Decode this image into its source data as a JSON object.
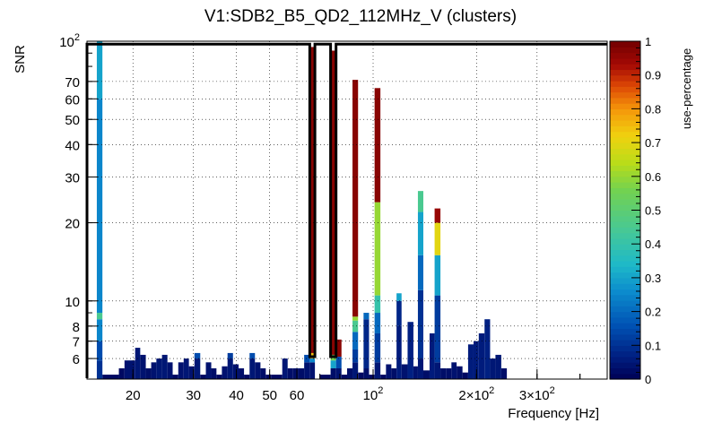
{
  "chart_data": {
    "type": "heatmap",
    "title": "V1:SDB2_B5_QD2_112MHz_V (clusters)",
    "xlabel": "Frequency [Hz]",
    "ylabel": "SNR",
    "zlabel": "use-percentage",
    "x_scale": "log",
    "y_scale": "log",
    "xlim": [
      14.7,
      480
    ],
    "ylim": [
      5.0,
      100
    ],
    "zlim": [
      0,
      1
    ],
    "x_ticks": [
      {
        "value": 20,
        "label": "20"
      },
      {
        "value": 30,
        "label": "30"
      },
      {
        "value": 40,
        "label": "40"
      },
      {
        "value": 50,
        "label": "50"
      },
      {
        "value": 60,
        "label": "60"
      },
      {
        "value": 100,
        "label": "10",
        "exp": "2"
      },
      {
        "value": 200,
        "label": "2×10",
        "exp": "2"
      },
      {
        "value": 300,
        "label": "3×10",
        "exp": "2"
      }
    ],
    "y_ticks": [
      {
        "value": 6,
        "label": "6"
      },
      {
        "value": 7,
        "label": "7"
      },
      {
        "value": 8,
        "label": "8"
      },
      {
        "value": 10,
        "label": "10"
      },
      {
        "value": 20,
        "label": "20"
      },
      {
        "value": 30,
        "label": "30"
      },
      {
        "value": 40,
        "label": "40"
      },
      {
        "value": 50,
        "label": "50"
      },
      {
        "value": 60,
        "label": "60"
      },
      {
        "value": 70,
        "label": "70"
      },
      {
        "value": 100,
        "label": "10",
        "exp": "2"
      }
    ],
    "z_ticks": [
      {
        "value": 0,
        "label": "0"
      },
      {
        "value": 0.1,
        "label": "0.1"
      },
      {
        "value": 0.2,
        "label": "0.2"
      },
      {
        "value": 0.3,
        "label": "0.3"
      },
      {
        "value": 0.4,
        "label": "0.4"
      },
      {
        "value": 0.5,
        "label": "0.5"
      },
      {
        "value": 0.6,
        "label": "0.6"
      },
      {
        "value": 0.7,
        "label": "0.7"
      },
      {
        "value": 0.8,
        "label": "0.8"
      },
      {
        "value": 0.9,
        "label": "0.9"
      },
      {
        "value": 1,
        "label": "1"
      }
    ],
    "columns": [
      {
        "x": [
          15.7,
          16.3
        ],
        "cells": [
          [
            5.0,
            5.9,
            0.1
          ],
          [
            5.9,
            7.0,
            0.15
          ],
          [
            7.0,
            8.5,
            0.25
          ],
          [
            8.5,
            9.0,
            0.45
          ],
          [
            9.0,
            60,
            0.25
          ],
          [
            60,
            100,
            0.3
          ]
        ]
      },
      {
        "x": [
          16.3,
          18.2
        ],
        "cells": [
          [
            5.0,
            5.2,
            0.02
          ]
        ]
      },
      {
        "x": [
          18.2,
          18.9
        ],
        "cells": [
          [
            5.0,
            5.5,
            0.02
          ]
        ]
      },
      {
        "x": [
          18.9,
          20.3
        ],
        "cells": [
          [
            5.0,
            5.9,
            0.04
          ]
        ]
      },
      {
        "x": [
          20.3,
          21.0
        ],
        "cells": [
          [
            5.0,
            6.6,
            0.05
          ]
        ]
      },
      {
        "x": [
          21.0,
          21.8
        ],
        "cells": [
          [
            5.0,
            6.2,
            0.04
          ]
        ]
      },
      {
        "x": [
          21.8,
          22.6
        ],
        "cells": [
          [
            5.0,
            5.5,
            0.03
          ]
        ]
      },
      {
        "x": [
          22.6,
          23.4
        ],
        "cells": [
          [
            5.0,
            5.8,
            0.04
          ]
        ]
      },
      {
        "x": [
          23.4,
          24.3
        ],
        "cells": [
          [
            5.0,
            6.0,
            0.05
          ]
        ]
      },
      {
        "x": [
          24.3,
          25.2
        ],
        "cells": [
          [
            5.0,
            6.2,
            0.05
          ]
        ]
      },
      {
        "x": [
          25.2,
          26.1
        ],
        "cells": [
          [
            5.0,
            5.8,
            0.04
          ]
        ]
      },
      {
        "x": [
          26.1,
          27.1
        ],
        "cells": [
          [
            5.0,
            5.2,
            0.02
          ]
        ]
      },
      {
        "x": [
          27.1,
          28.1
        ],
        "cells": [
          [
            5.0,
            5.8,
            0.04
          ]
        ]
      },
      {
        "x": [
          28.1,
          29.1
        ],
        "cells": [
          [
            5.0,
            6.0,
            0.05
          ]
        ]
      },
      {
        "x": [
          29.1,
          30.2
        ],
        "cells": [
          [
            5.0,
            5.6,
            0.04
          ]
        ]
      },
      {
        "x": [
          30.2,
          31.4
        ],
        "cells": [
          [
            5.0,
            6.0,
            0.05
          ],
          [
            6.0,
            6.3,
            0.15
          ]
        ]
      },
      {
        "x": [
          31.4,
          32.6
        ],
        "cells": [
          [
            5.0,
            5.2,
            0.02
          ]
        ]
      },
      {
        "x": [
          32.6,
          33.8
        ],
        "cells": [
          [
            5.0,
            5.8,
            0.04
          ]
        ]
      },
      {
        "x": [
          33.8,
          35.0
        ],
        "cells": [
          [
            5.0,
            5.5,
            0.03
          ]
        ]
      },
      {
        "x": [
          35.0,
          36.3
        ],
        "cells": [
          [
            5.0,
            5.2,
            0.02
          ]
        ]
      },
      {
        "x": [
          36.3,
          37.7
        ],
        "cells": [
          [
            5.0,
            5.6,
            0.04
          ]
        ]
      },
      {
        "x": [
          37.7,
          39.1
        ],
        "cells": [
          [
            5.0,
            6.0,
            0.05
          ],
          [
            6.0,
            6.3,
            0.12
          ]
        ]
      },
      {
        "x": [
          39.1,
          40.6
        ],
        "cells": [
          [
            5.0,
            5.7,
            0.04
          ]
        ]
      },
      {
        "x": [
          40.6,
          42.1
        ],
        "cells": [
          [
            5.0,
            5.5,
            0.03
          ]
        ]
      },
      {
        "x": [
          42.1,
          43.7
        ],
        "cells": [
          [
            5.0,
            5.2,
            0.02
          ]
        ]
      },
      {
        "x": [
          43.7,
          45.3
        ],
        "cells": [
          [
            5.0,
            6.0,
            0.05
          ],
          [
            6.0,
            6.3,
            0.15
          ]
        ]
      },
      {
        "x": [
          45.3,
          47.0
        ],
        "cells": [
          [
            5.0,
            5.8,
            0.04
          ]
        ]
      },
      {
        "x": [
          47.0,
          48.7
        ],
        "cells": [
          [
            5.0,
            5.5,
            0.03
          ]
        ]
      },
      {
        "x": [
          48.7,
          50.5
        ],
        "cells": [
          [
            5.0,
            5.2,
            0.02
          ]
        ]
      },
      {
        "x": [
          50.5,
          52.4
        ],
        "cells": [
          [
            5.0,
            5.2,
            0.02
          ]
        ]
      },
      {
        "x": [
          52.4,
          54.4
        ],
        "cells": [
          [
            5.0,
            5.2,
            0.02
          ]
        ]
      },
      {
        "x": [
          54.4,
          56.4
        ],
        "cells": [
          [
            5.0,
            6.0,
            0.05
          ]
        ]
      },
      {
        "x": [
          56.4,
          58.5
        ],
        "cells": [
          [
            5.0,
            5.5,
            0.03
          ]
        ]
      },
      {
        "x": [
          58.5,
          60.7
        ],
        "cells": [
          [
            5.0,
            5.5,
            0.03
          ]
        ]
      },
      {
        "x": [
          60.7,
          63.0
        ],
        "cells": [
          [
            5.0,
            5.5,
            0.03
          ]
        ]
      },
      {
        "x": [
          63.0,
          65.4
        ],
        "cells": [
          [
            5.0,
            5.8,
            0.04
          ],
          [
            5.8,
            6.2,
            0.15
          ]
        ]
      },
      {
        "x": [
          65.4,
          67.7
        ],
        "cells": [
          [
            5.0,
            5.8,
            0.04
          ],
          [
            5.8,
            6.0,
            0.25
          ],
          [
            6.0,
            6.3,
            0.75
          ],
          [
            6.3,
            95,
            0.97
          ]
        ]
      },
      {
        "x": [
          69.8,
          72.5
        ],
        "cells": [
          [
            5.0,
            5.2,
            0.02
          ]
        ]
      },
      {
        "x": [
          72.5,
          75.2
        ],
        "cells": [
          [
            5.0,
            5.2,
            0.02
          ]
        ]
      },
      {
        "x": [
          75.2,
          78.0
        ],
        "cells": [
          [
            5.0,
            5.5,
            0.03
          ],
          [
            5.5,
            5.9,
            0.3
          ],
          [
            5.9,
            6.2,
            0.55
          ],
          [
            6.2,
            92,
            0.97
          ]
        ]
      },
      {
        "x": [
          78.0,
          80.9
        ],
        "cells": [
          [
            5.0,
            5.5,
            0.04
          ],
          [
            5.5,
            6.1,
            0.15
          ],
          [
            6.1,
            7.1,
            0.97
          ]
        ]
      },
      {
        "x": [
          80.9,
          84.0
        ],
        "cells": [
          [
            5.0,
            5.2,
            0.02
          ]
        ]
      },
      {
        "x": [
          84.0,
          87.1
        ],
        "cells": [
          [
            5.0,
            5.5,
            0.03
          ]
        ]
      },
      {
        "x": [
          87.1,
          90.4
        ],
        "cells": [
          [
            5.0,
            5.8,
            0.05
          ],
          [
            5.8,
            6.5,
            0.12
          ],
          [
            6.5,
            7.6,
            0.2
          ],
          [
            7.6,
            8.4,
            0.45
          ],
          [
            8.4,
            8.7,
            0.6
          ],
          [
            8.7,
            71,
            0.97
          ]
        ]
      },
      {
        "x": [
          90.4,
          93.8
        ],
        "cells": [
          [
            5.0,
            5.3,
            0.02
          ]
        ]
      },
      {
        "x": [
          93.8,
          97.3
        ],
        "cells": [
          [
            5.0,
            5.5,
            0.03
          ],
          [
            5.5,
            8.5,
            0.08
          ],
          [
            8.5,
            9.0,
            0.2
          ]
        ]
      },
      {
        "x": [
          97.3,
          101
        ],
        "cells": [
          [
            5.0,
            5.2,
            0.02
          ]
        ]
      },
      {
        "x": [
          101,
          105
        ],
        "cells": [
          [
            5.0,
            5.8,
            0.05
          ],
          [
            5.8,
            7.5,
            0.12
          ],
          [
            7.5,
            9.0,
            0.2
          ],
          [
            9.0,
            10.5,
            0.4
          ],
          [
            10.5,
            24,
            0.6
          ],
          [
            24,
            66,
            0.97
          ]
        ]
      },
      {
        "x": [
          105,
          109
        ],
        "cells": [
          [
            5.0,
            5.2,
            0.02
          ]
        ]
      },
      {
        "x": [
          109,
          113
        ],
        "cells": [
          [
            5.0,
            5.7,
            0.04
          ]
        ]
      },
      {
        "x": [
          113,
          117
        ],
        "cells": [
          [
            5.0,
            5.5,
            0.03
          ]
        ]
      },
      {
        "x": [
          117,
          121
        ],
        "cells": [
          [
            5.0,
            8.0,
            0.06
          ],
          [
            8.0,
            10.0,
            0.08
          ],
          [
            10.0,
            10.7,
            0.3
          ]
        ]
      },
      {
        "x": [
          121,
          126
        ],
        "cells": [
          [
            5.0,
            5.7,
            0.04
          ]
        ]
      },
      {
        "x": [
          126,
          131
        ],
        "cells": [
          [
            5.0,
            8.3,
            0.07
          ]
        ]
      },
      {
        "x": [
          131,
          135
        ],
        "cells": [
          [
            5.0,
            5.6,
            0.04
          ]
        ]
      },
      {
        "x": [
          135,
          140
        ],
        "cells": [
          [
            5.0,
            6.0,
            0.05
          ],
          [
            6.0,
            11,
            0.1
          ],
          [
            11,
            15,
            0.2
          ],
          [
            15,
            22,
            0.3
          ],
          [
            22,
            26.5,
            0.45
          ]
        ]
      },
      {
        "x": [
          140,
          146
        ],
        "cells": [
          [
            5.0,
            5.4,
            0.03
          ]
        ]
      },
      {
        "x": [
          146,
          151
        ],
        "cells": [
          [
            5.0,
            7.5,
            0.06
          ]
        ]
      },
      {
        "x": [
          151,
          157
        ],
        "cells": [
          [
            5.0,
            5.8,
            0.05
          ],
          [
            5.8,
            10.5,
            0.12
          ],
          [
            10.5,
            15,
            0.3
          ],
          [
            15,
            20,
            0.7
          ],
          [
            20,
            22.7,
            0.95
          ]
        ]
      },
      {
        "x": [
          157,
          163
        ],
        "cells": [
          [
            5.0,
            5.5,
            0.03
          ]
        ]
      },
      {
        "x": [
          163,
          169
        ],
        "cells": [
          [
            5.0,
            5.5,
            0.03
          ]
        ]
      },
      {
        "x": [
          169,
          175
        ],
        "cells": [
          [
            5.0,
            5.8,
            0.04
          ]
        ]
      },
      {
        "x": [
          175,
          182
        ],
        "cells": [
          [
            5.0,
            5.6,
            0.03
          ]
        ]
      },
      {
        "x": [
          182,
          189
        ],
        "cells": [
          [
            5.0,
            5.3,
            0.02
          ]
        ]
      },
      {
        "x": [
          189,
          196
        ],
        "cells": [
          [
            5.0,
            6.8,
            0.06
          ]
        ]
      },
      {
        "x": [
          196,
          203
        ],
        "cells": [
          [
            5.0,
            7.0,
            0.06
          ]
        ]
      },
      {
        "x": [
          203,
          211
        ],
        "cells": [
          [
            5.0,
            7.5,
            0.06
          ]
        ]
      },
      {
        "x": [
          211,
          219
        ],
        "cells": [
          [
            5.0,
            8.5,
            0.07
          ]
        ]
      },
      {
        "x": [
          219,
          227
        ],
        "cells": [
          [
            5.0,
            6.0,
            0.05
          ]
        ]
      },
      {
        "x": [
          227,
          236
        ],
        "cells": [
          [
            5.0,
            6.2,
            0.05
          ]
        ]
      },
      {
        "x": [
          236,
          245
        ],
        "cells": [
          [
            5.0,
            5.5,
            0.03
          ]
        ]
      }
    ],
    "line_segments": [
      [
        [
          14.7,
          5.04
        ],
        [
          14.7,
          97.5
        ],
        [
          65.4,
          97.5
        ],
        [
          65.4,
          6.1
        ],
        [
          67.7,
          6.1
        ],
        [
          67.7,
          97.5
        ],
        [
          75.2,
          97.5
        ],
        [
          75.2,
          6.1
        ],
        [
          78.0,
          6.1
        ],
        [
          78.0,
          97.5
        ],
        [
          480,
          97.5
        ]
      ]
    ]
  }
}
